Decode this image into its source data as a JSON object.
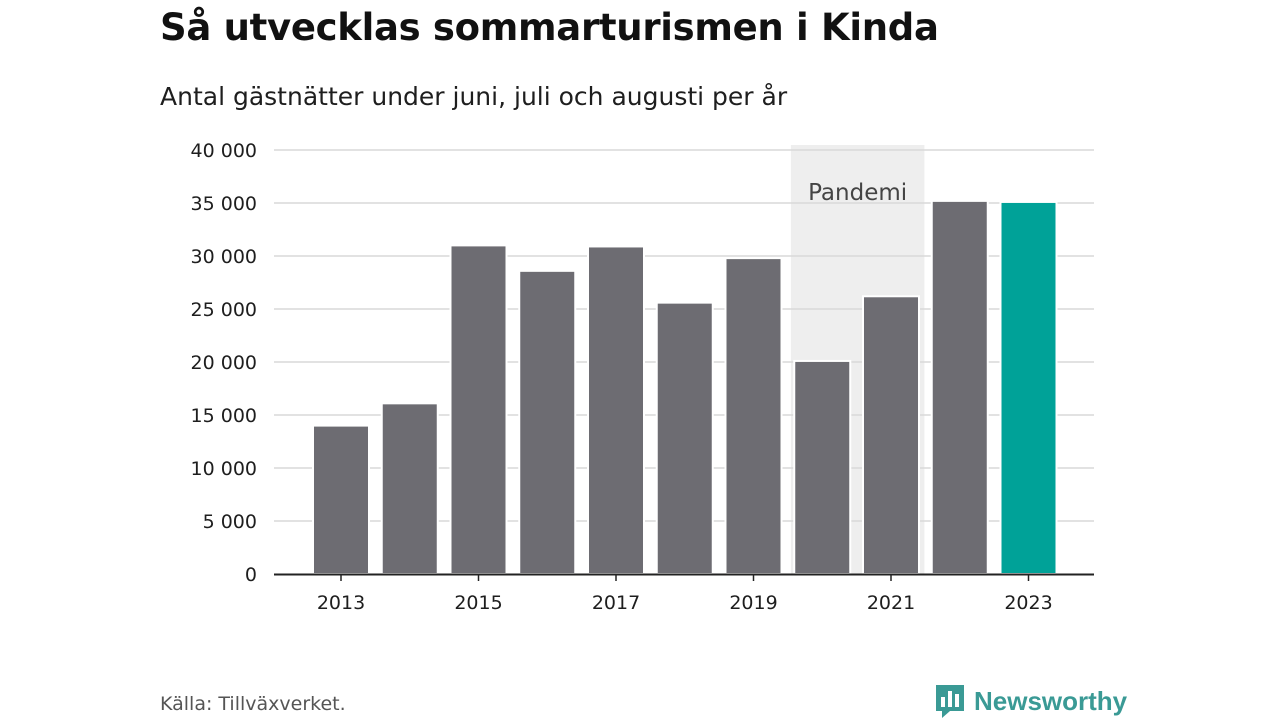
{
  "header": {
    "title": "Så utvecklas sommarturismen i Kinda",
    "subtitle": "Antal gästnätter under juni, juli och augusti per år"
  },
  "chart_data": {
    "type": "bar",
    "categories": [
      "2013",
      "2014",
      "2015",
      "2016",
      "2017",
      "2018",
      "2019",
      "2020",
      "2021",
      "2022",
      "2023"
    ],
    "values": [
      14000,
      16100,
      31000,
      28600,
      30900,
      25600,
      29800,
      20100,
      26200,
      35200,
      35100
    ],
    "xtick_labels": [
      "2013",
      "2015",
      "2017",
      "2019",
      "2021",
      "2023"
    ],
    "ytick_labels": [
      "0",
      "5 000",
      "10 000",
      "15 000",
      "20 000",
      "25 000",
      "30 000",
      "35 000",
      "40 000"
    ],
    "yticks": [
      0,
      5000,
      10000,
      15000,
      20000,
      25000,
      30000,
      35000,
      40000
    ],
    "ylim": [
      0,
      40000
    ],
    "grid": true,
    "highlight_category": "2023",
    "annotation": {
      "label": "Pandemi",
      "from": "2020",
      "to": "2021"
    },
    "colors": {
      "bar": "#6d6c72",
      "highlight": "#00a298",
      "shade": "#eeeeee",
      "grid": "#d9d9d9",
      "axis": "#222222"
    }
  },
  "footer": {
    "source": "Källa: Tillväxverket.",
    "brand": "Newsworthy",
    "brand_icon": "newsworthy-chart-bubble-icon"
  }
}
